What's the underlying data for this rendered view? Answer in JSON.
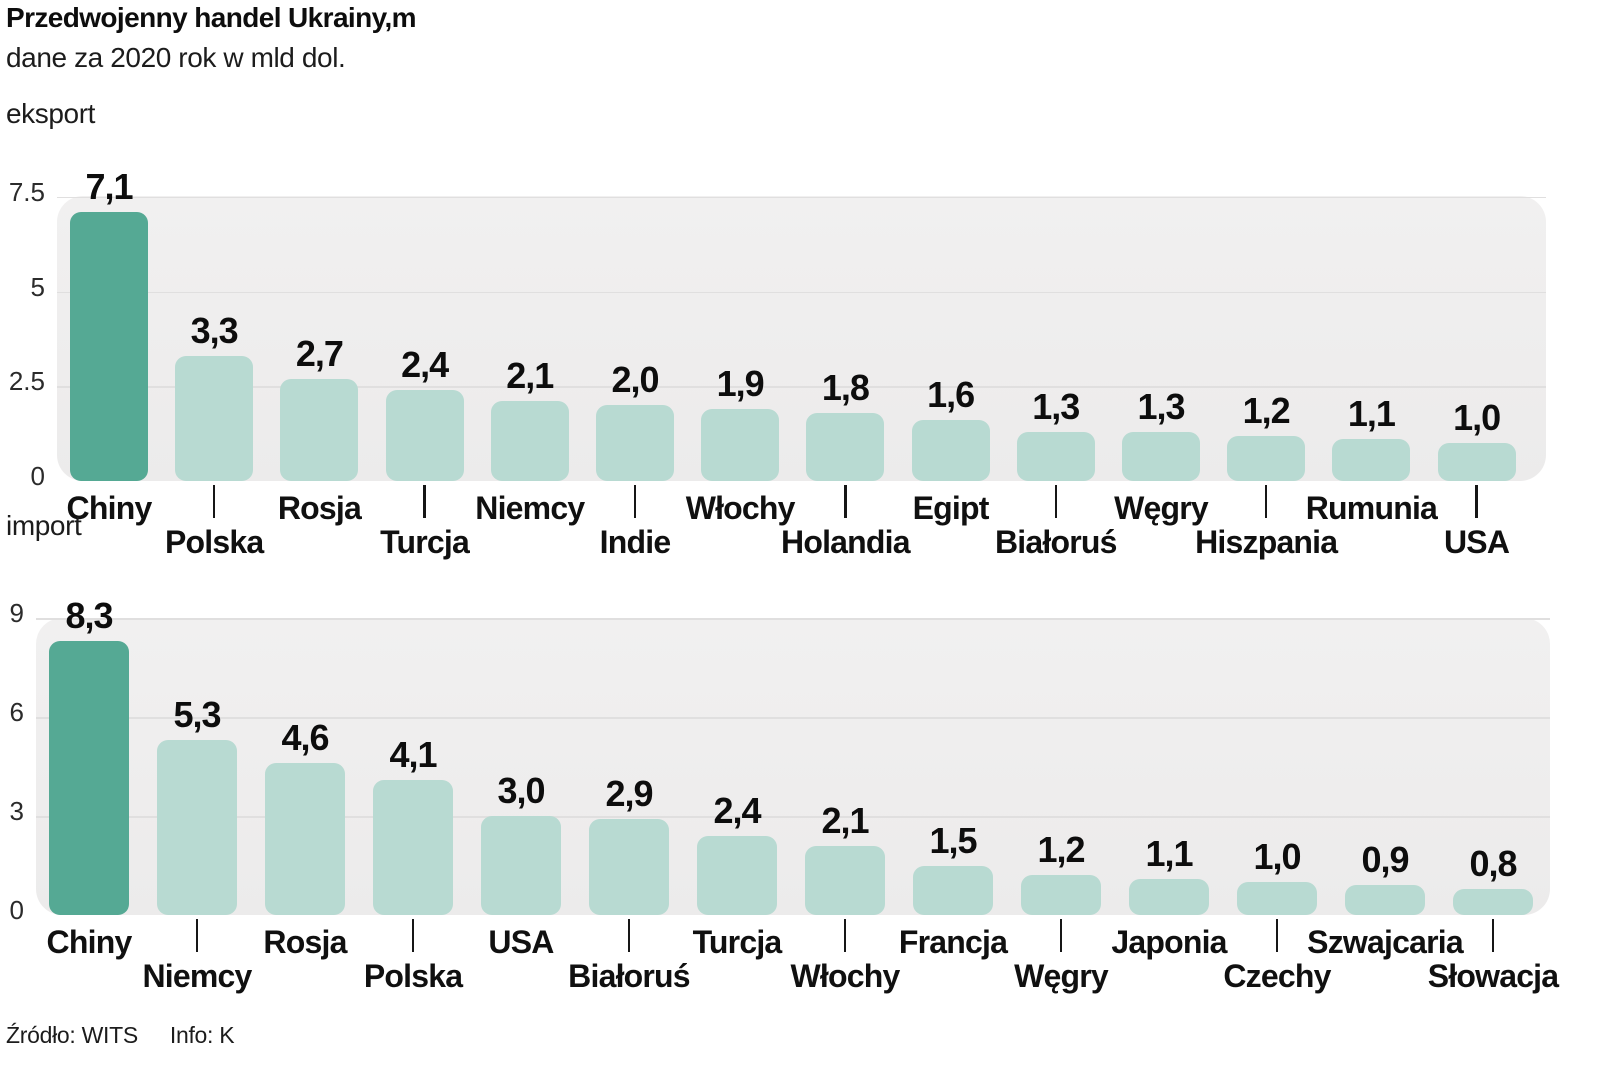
{
  "title": "Przedwojenny handel Ukrainy,m",
  "subtitle": "dane za 2020 rok w mld dol.",
  "footer": {
    "source": "Źródło: WITS",
    "info": "Info: K"
  },
  "colors": {
    "highlight_bar": "#55A994",
    "regular_bar": "#B8DAD2",
    "plot_background": "#EFEEEE",
    "gridline": "#E0DFDF",
    "text": "#111111"
  },
  "chart_data": [
    {
      "type": "bar",
      "section_label": "eksport",
      "title": "eksport",
      "xlabel": "",
      "ylabel": "",
      "ylim": [
        0,
        7.5
      ],
      "yticks": [
        "7.5",
        "5",
        "2.5",
        "0"
      ],
      "grid": true,
      "legend": "none",
      "highlight_index": 0,
      "categories": [
        "Chiny",
        "Polska",
        "Rosja",
        "Turcja",
        "Niemcy",
        "Indie",
        "Włochy",
        "Holandia",
        "Egipt",
        "Białoruś",
        "Węgry",
        "Hiszpania",
        "Rumunia",
        "USA"
      ],
      "values": [
        7.1,
        3.3,
        2.7,
        2.4,
        2.1,
        2.0,
        1.9,
        1.8,
        1.6,
        1.3,
        1.3,
        1.2,
        1.1,
        1.0
      ],
      "value_labels": [
        "7,1",
        "3,3",
        "2,7",
        "2,4",
        "2,1",
        "2,0",
        "1,9",
        "1,8",
        "1,6",
        "1,3",
        "1,3",
        "1,2",
        "1,1",
        "1,0"
      ]
    },
    {
      "type": "bar",
      "section_label": "import",
      "title": "import",
      "xlabel": "",
      "ylabel": "",
      "ylim": [
        0,
        9
      ],
      "yticks": [
        "9",
        "6",
        "3",
        "0"
      ],
      "grid": true,
      "legend": "none",
      "highlight_index": 0,
      "categories": [
        "Chiny",
        "Niemcy",
        "Rosja",
        "Polska",
        "USA",
        "Białoruś",
        "Turcja",
        "Włochy",
        "Francja",
        "Węgry",
        "Japonia",
        "Czechy",
        "Szwajcaria",
        "Słowacja"
      ],
      "values": [
        8.3,
        5.3,
        4.6,
        4.1,
        3.0,
        2.9,
        2.4,
        2.1,
        1.5,
        1.2,
        1.1,
        1.0,
        0.9,
        0.8
      ],
      "value_labels": [
        "8,3",
        "5,3",
        "4,6",
        "4,1",
        "3,0",
        "2,9",
        "2,4",
        "2,1",
        "1,5",
        "1,2",
        "1,1",
        "1,0",
        "0,9",
        "0,8"
      ]
    }
  ]
}
